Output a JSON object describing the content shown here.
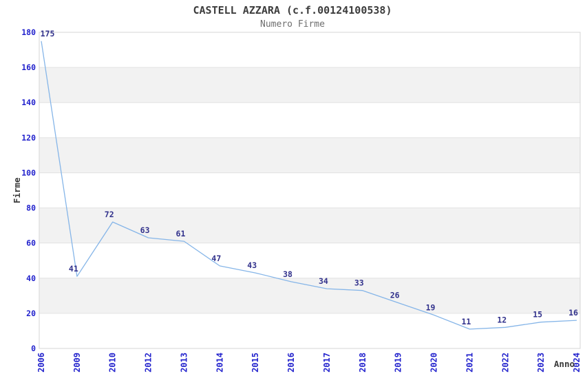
{
  "chart_data": {
    "type": "line",
    "title": "CASTELL AZZARA (c.f.00124100538)",
    "subtitle": "Numero Firme",
    "xlabel": "Anno",
    "ylabel": "Firme",
    "categories": [
      "2006",
      "2009",
      "2010",
      "2012",
      "2013",
      "2014",
      "2015",
      "2016",
      "2017",
      "2018",
      "2019",
      "2020",
      "2021",
      "2022",
      "2023",
      "2024"
    ],
    "values": [
      175,
      41,
      72,
      63,
      61,
      47,
      43,
      38,
      34,
      33,
      26,
      19,
      11,
      12,
      15,
      16
    ],
    "ylim": [
      0,
      180
    ],
    "yticks": [
      0,
      20,
      40,
      60,
      80,
      100,
      120,
      140,
      160,
      180
    ],
    "grid": true,
    "legend": "none",
    "band_pattern": "alternating horizontal bands between gridlines",
    "colors": {
      "line": "#85b5e8",
      "tick_labels": "#2323cd",
      "point_labels": "#32328c",
      "axis_titles": "#3a3a3a",
      "title": "#3c3c3c",
      "subtitle": "#6e6e6e",
      "band": "#f2f2f2",
      "gridline": "#e2e2e2",
      "plot_border": "#d5d5d5",
      "background": "#ffffff"
    }
  }
}
